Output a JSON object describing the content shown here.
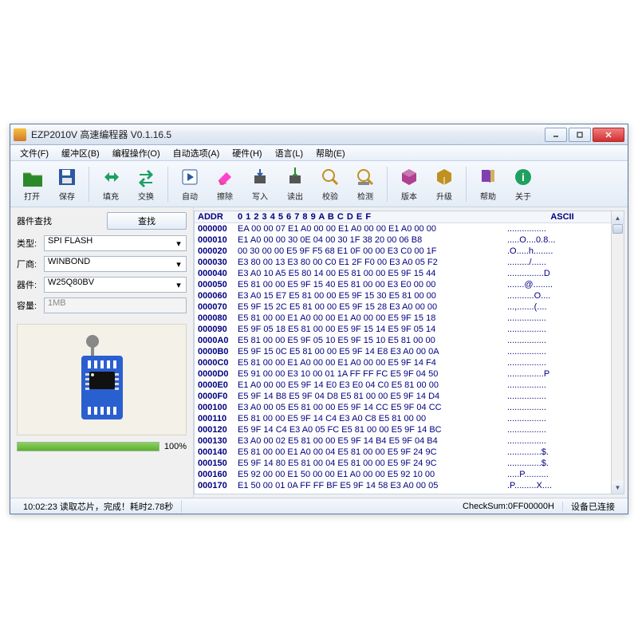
{
  "window": {
    "title": "EZP2010V 高速编程器  V0.1.16.5"
  },
  "menu": [
    "文件(F)",
    "缓冲区(B)",
    "编程操作(O)",
    "自动选项(A)",
    "硬件(H)",
    "语言(L)",
    "帮助(E)"
  ],
  "toolbar": {
    "groups": [
      [
        {
          "id": "open",
          "label": "打开",
          "fg": "#2a8a2a",
          "shape": "folder"
        },
        {
          "id": "save",
          "label": "保存",
          "fg": "#2a5aa0",
          "shape": "disk"
        }
      ],
      [
        {
          "id": "fill",
          "label": "填充",
          "fg": "#1aa060",
          "shape": "arrows-h"
        },
        {
          "id": "swap",
          "label": "交换",
          "fg": "#1aa060",
          "shape": "arrows-swap"
        }
      ],
      [
        {
          "id": "auto",
          "label": "自动",
          "fg": "#2a5aa0",
          "shape": "play"
        },
        {
          "id": "erase",
          "label": "擦除",
          "fg": "#c05050",
          "shape": "eraser"
        },
        {
          "id": "write",
          "label": "写入",
          "fg": "#2a5aa0",
          "shape": "chip-down"
        },
        {
          "id": "read",
          "label": "读出",
          "fg": "#2a8a2a",
          "shape": "chip-up"
        },
        {
          "id": "verify",
          "label": "校验",
          "fg": "#c09020",
          "shape": "magnify"
        },
        {
          "id": "detect",
          "label": "检测",
          "fg": "#c09020",
          "shape": "magnify2"
        }
      ],
      [
        {
          "id": "version",
          "label": "版本",
          "fg": "#b04090",
          "shape": "cube"
        },
        {
          "id": "upgrade",
          "label": "升级",
          "fg": "#c09020",
          "shape": "cube2"
        }
      ],
      [
        {
          "id": "help",
          "label": "帮助",
          "fg": "#8040b0",
          "shape": "book"
        },
        {
          "id": "about",
          "label": "关于",
          "fg": "#20a060",
          "shape": "info"
        }
      ]
    ]
  },
  "left": {
    "search_label": "器件查找",
    "search_button": "查找",
    "fields": {
      "type_label": "类型:",
      "type_value": "SPI FLASH",
      "vendor_label": "厂商:",
      "vendor_value": "WINBOND",
      "part_label": "器件:",
      "part_value": "W25Q80BV",
      "size_label": "容量:",
      "size_value": "1MB"
    },
    "progress_pct": 100,
    "progress_label": "100%"
  },
  "hex": {
    "header_addr": "ADDR",
    "header_cols": "0  1  2  3  4  5  6  7  8  9  A  B  C  D  E  F",
    "header_ascii": "ASCII",
    "rows": [
      {
        "a": "000000",
        "b": "EA 00 00 07 E1 A0 00 00 E1 A0 00 00 E1 A0 00 00",
        "t": "................"
      },
      {
        "a": "000010",
        "b": "E1 A0 00 00 30 0E 04 00 30 1F 38 20 00 06 B8",
        "t": ".....O....0.8..."
      },
      {
        "a": "000020",
        "b": "00 30 00 00 E5 9F F5 68 E1 0F 00 00 E3 C0 00 1F",
        "t": ".O.....h........"
      },
      {
        "a": "000030",
        "b": "E3 80 00 13 E3 80 00 C0 E1 2F F0 00 E3 A0 05 F2",
        "t": "........./......"
      },
      {
        "a": "000040",
        "b": "E3 A0 10 A5 E5 80 14 00 E5 81 00 00 E5 9F 15 44",
        "t": "...............D"
      },
      {
        "a": "000050",
        "b": "E5 81 00 00 E5 9F 15 40 E5 81 00 00 E3 E0 00 00",
        "t": ".......@........"
      },
      {
        "a": "000060",
        "b": "E3 A0 15 E7 E5 81 00 00 E5 9F 15 30 E5 81 00 00",
        "t": "...........O...."
      },
      {
        "a": "000070",
        "b": "E5 9F 15 2C E5 81 00 00 E5 9F 15 28 E3 A0 00 00",
        "t": "...,.......(...."
      },
      {
        "a": "000080",
        "b": "E5 81 00 00 E1 A0 00 00 E1 A0 00 00 E5 9F 15 18",
        "t": "................"
      },
      {
        "a": "000090",
        "b": "E5 9F 05 18 E5 81 00 00 E5 9F 15 14 E5 9F 05 14",
        "t": "................"
      },
      {
        "a": "0000A0",
        "b": "E5 81 00 00 E5 9F 05 10 E5 9F 15 10 E5 81 00 00",
        "t": "................"
      },
      {
        "a": "0000B0",
        "b": "E5 9F 15 0C E5 81 00 00 E5 9F 14 E8 E3 A0 00 0A",
        "t": "................"
      },
      {
        "a": "0000C0",
        "b": "E5 81 00 00 E1 A0 00 00 E1 A0 00 00 E5 9F 14 F4",
        "t": "................"
      },
      {
        "a": "0000D0",
        "b": "E5 91 00 00 E3 10 00 01 1A FF FF FC E5 9F 04 50",
        "t": "...............P"
      },
      {
        "a": "0000E0",
        "b": "E1 A0 00 00 E5 9F 14 E0 E3 E0 04 C0 E5 81 00 00",
        "t": "................"
      },
      {
        "a": "0000F0",
        "b": "E5 9F 14 B8 E5 9F 04 D8 E5 81 00 00 E5 9F 14 D4",
        "t": "................"
      },
      {
        "a": "000100",
        "b": "E3 A0 00 05 E5 81 00 00 E5 9F 14 CC E5 9F 04 CC",
        "t": "................"
      },
      {
        "a": "000110",
        "b": "E5 81 00 00 E5 9F 14 C4 E3 A0 C8 E5 81 00 00",
        "t": "................"
      },
      {
        "a": "000120",
        "b": "E5 9F 14 C4 E3 A0 05 FC E5 81 00 00 E5 9F 14 BC",
        "t": "................"
      },
      {
        "a": "000130",
        "b": "E3 A0 00 02 E5 81 00 00 E5 9F 14 B4 E5 9F 04 B4",
        "t": "................"
      },
      {
        "a": "000140",
        "b": "E5 81 00 00 E1 A0 00 04 E5 81 00 00 E5 9F 24 9C",
        "t": "..............$."
      },
      {
        "a": "000150",
        "b": "E5 9F 14 80 E5 81 00 04 E5 81 00 00 E5 9F 24 9C",
        "t": "..............$."
      },
      {
        "a": "000160",
        "b": "E5 92 00 00 E1 50 00 00 E1 A0 00 00 E5 92 10 00",
        "t": ".....P.........."
      },
      {
        "a": "000170",
        "b": "E1 50 00 01 0A FF FF BF E5 9F 14 58 E3 A0 00 05",
        "t": ".P.........X...."
      }
    ]
  },
  "status": {
    "left": "10:02:23 读取芯片，完成！耗时2.78秒",
    "checksum": "CheckSum:0FF00000H",
    "conn": "设备已连接"
  },
  "colors": {
    "hex_text": "#000080"
  }
}
